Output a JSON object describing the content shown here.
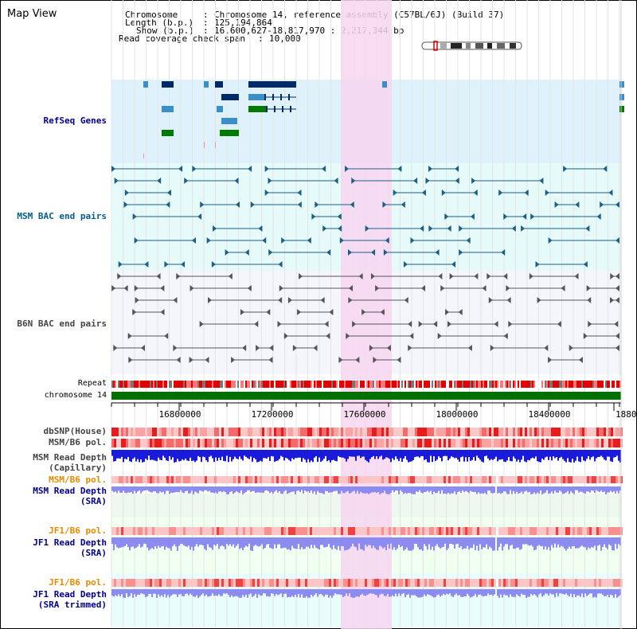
{
  "header": {
    "title": "Map View",
    "chromosome_key": "Chromosome",
    "chromosome_value": "Chromosome 14, reference assembly (C57BL/6J) (Build 37)",
    "length_key": "Length (b.p.)",
    "length_value": "125,194,864",
    "show_key": "Show (b.p.)",
    "show_value": "16,600,627-18,817,970 : 2,217,344 bp",
    "coverage_key": "Read coverage check span",
    "coverage_value": "10,000"
  },
  "tracks": {
    "refseq_genes": "RefSeq Genes",
    "msm_bac": "MSM BAC end pairs",
    "b6n_bac": "B6N BAC end pairs",
    "repeat": "Repeat",
    "chromosome": "chromosome 14",
    "dbsnp": "dbSNP(House)",
    "msm_b6_pol_1": "MSM/B6 pol.",
    "msm_read_depth_cap_1": "MSM Read Depth",
    "msm_read_depth_cap_2": "(Capillary)",
    "msm_b6_pol_2": "MSM/B6 pol.",
    "msm_read_depth_sra_1": "MSM Read Depth",
    "msm_read_depth_sra_2": "(SRA)",
    "jf1_b6_pol_1": "JF1/B6 pol.",
    "jf1_read_depth_sra_1": "JF1 Read Depth",
    "jf1_read_depth_sra_2": "(SRA)",
    "jf1_b6_pol_2": "JF1/B6 pol.",
    "jf1_read_depth_trim_1": "JF1 Read Depth",
    "jf1_read_depth_trim_2": "(SRA trimmed)"
  },
  "axis": {
    "ticks": [
      "16800000",
      "17200000",
      "17600000",
      "18000000",
      "18400000",
      "1880"
    ]
  },
  "colors": {
    "refseq_bg": "#dff2fb",
    "highlight": "#f7d6f0",
    "gene_dark": "#002a66",
    "gene_blue": "#3b8fc4",
    "gene_green": "#007a00",
    "msm_line": "#1b5f86",
    "b6n_line": "#555555",
    "chrom_green": "#007000",
    "depth_dark": "#1a1adb",
    "depth_light": "#8c8cf0"
  }
}
